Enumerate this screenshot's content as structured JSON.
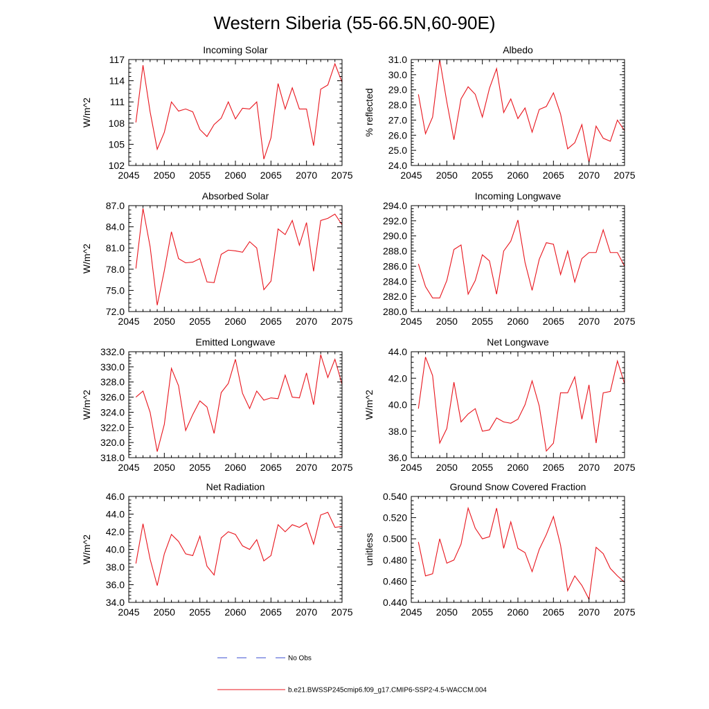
{
  "figure": {
    "title": "Western Siberia (55-66.5N,60-90E)",
    "line_color": "#e8141c",
    "obs_color": "#3a4bd1"
  },
  "legend": {
    "obs_label": "No Obs",
    "model_label": "b.e21.BWSSP245cmip6.f09_g17.CMIP6-SSP2-4.5-WACCM.004"
  },
  "chart_data": [
    {
      "type": "line",
      "title": "Incoming Solar",
      "xlabel": "",
      "ylabel": "W/m^2",
      "xlim": [
        2045,
        2075
      ],
      "ylim": [
        102,
        117
      ],
      "xticks": [
        2045,
        2050,
        2055,
        2060,
        2065,
        2070,
        2075
      ],
      "yticks": [
        102,
        105,
        108,
        111,
        114,
        117
      ],
      "ytick_labels": [
        "102",
        "105",
        "108",
        "111",
        "114",
        "117"
      ],
      "x": [
        2046,
        2047,
        2048,
        2049,
        2050,
        2051,
        2052,
        2053,
        2054,
        2055,
        2056,
        2057,
        2058,
        2059,
        2060,
        2061,
        2062,
        2063,
        2064,
        2065,
        2066,
        2067,
        2068,
        2069,
        2070,
        2071,
        2072,
        2073,
        2074,
        2075
      ],
      "values": [
        108.1,
        116.2,
        109.6,
        104.3,
        106.7,
        111.0,
        109.7,
        110.0,
        109.6,
        107.1,
        106.1,
        107.8,
        108.7,
        111.0,
        108.6,
        110.1,
        110.0,
        111.0,
        102.9,
        105.9,
        113.6,
        110.0,
        113.0,
        110.0,
        110.0,
        104.8,
        112.8,
        113.4,
        116.4,
        113.8
      ]
    },
    {
      "type": "line",
      "title": "Albedo",
      "xlabel": "",
      "ylabel": "% reflected",
      "xlim": [
        2045,
        2075
      ],
      "ylim": [
        24.0,
        31.0
      ],
      "xticks": [
        2045,
        2050,
        2055,
        2060,
        2065,
        2070,
        2075
      ],
      "yticks": [
        24.0,
        25.0,
        26.0,
        27.0,
        28.0,
        29.0,
        30.0,
        31.0
      ],
      "ytick_labels": [
        "24.0",
        "25.0",
        "26.0",
        "27.0",
        "28.0",
        "29.0",
        "30.0",
        "31.0"
      ],
      "x": [
        2046,
        2047,
        2048,
        2049,
        2050,
        2051,
        2052,
        2053,
        2054,
        2055,
        2056,
        2057,
        2058,
        2059,
        2060,
        2061,
        2062,
        2063,
        2064,
        2065,
        2066,
        2067,
        2068,
        2069,
        2070,
        2071,
        2072,
        2073,
        2074,
        2075
      ],
      "values": [
        28.7,
        26.1,
        27.2,
        31.0,
        28.2,
        25.7,
        28.4,
        29.2,
        28.7,
        27.2,
        29.1,
        30.4,
        27.5,
        28.4,
        27.1,
        27.8,
        26.2,
        27.7,
        27.9,
        28.8,
        27.4,
        25.1,
        25.5,
        26.7,
        24.2,
        26.6,
        25.8,
        25.6,
        27.0,
        26.3
      ]
    },
    {
      "type": "line",
      "title": "Absorbed Solar",
      "xlabel": "",
      "ylabel": "W/m^2",
      "xlim": [
        2045,
        2075
      ],
      "ylim": [
        72.0,
        87.0
      ],
      "xticks": [
        2045,
        2050,
        2055,
        2060,
        2065,
        2070,
        2075
      ],
      "yticks": [
        72.0,
        75.0,
        78.0,
        81.0,
        84.0,
        87.0
      ],
      "ytick_labels": [
        "72.0",
        "75.0",
        "78.0",
        "81.0",
        "84.0",
        "87.0"
      ],
      "x": [
        2046,
        2047,
        2048,
        2049,
        2050,
        2051,
        2052,
        2053,
        2054,
        2055,
        2056,
        2057,
        2058,
        2059,
        2060,
        2061,
        2062,
        2063,
        2064,
        2065,
        2066,
        2067,
        2068,
        2069,
        2070,
        2071,
        2072,
        2073,
        2074,
        2075
      ],
      "values": [
        78.1,
        86.6,
        81.2,
        72.9,
        77.8,
        83.3,
        79.5,
        78.9,
        79.0,
        79.5,
        76.2,
        76.1,
        80.1,
        80.7,
        80.6,
        80.4,
        81.9,
        81.0,
        75.1,
        76.3,
        83.7,
        82.9,
        84.9,
        81.4,
        84.6,
        77.7,
        84.9,
        85.2,
        85.8,
        84.3
      ]
    },
    {
      "type": "line",
      "title": "Incoming Longwave",
      "xlabel": "",
      "ylabel": "",
      "xlim": [
        2045,
        2075
      ],
      "ylim": [
        280.0,
        294.0
      ],
      "xticks": [
        2045,
        2050,
        2055,
        2060,
        2065,
        2070,
        2075
      ],
      "yticks": [
        280.0,
        282.0,
        284.0,
        286.0,
        288.0,
        290.0,
        292.0,
        294.0
      ],
      "ytick_labels": [
        "280.0",
        "282.0",
        "284.0",
        "286.0",
        "288.0",
        "290.0",
        "292.0",
        "294.0"
      ],
      "x": [
        2046,
        2047,
        2048,
        2049,
        2050,
        2051,
        2052,
        2053,
        2054,
        2055,
        2056,
        2057,
        2058,
        2059,
        2060,
        2061,
        2062,
        2063,
        2064,
        2065,
        2066,
        2067,
        2068,
        2069,
        2070,
        2071,
        2072,
        2073,
        2074,
        2075
      ],
      "values": [
        286.3,
        283.3,
        281.8,
        281.8,
        284.1,
        288.2,
        288.8,
        282.3,
        284.1,
        287.5,
        286.7,
        282.3,
        288.0,
        289.3,
        292.1,
        286.5,
        282.8,
        286.9,
        289.1,
        288.9,
        284.9,
        288.0,
        283.9,
        287.0,
        287.8,
        287.8,
        290.8,
        287.8,
        287.8,
        286.0
      ]
    },
    {
      "type": "line",
      "title": "Emitted Longwave",
      "xlabel": "",
      "ylabel": "W/m^2",
      "xlim": [
        2045,
        2075
      ],
      "ylim": [
        318.0,
        332.0
      ],
      "xticks": [
        2045,
        2050,
        2055,
        2060,
        2065,
        2070,
        2075
      ],
      "yticks": [
        318.0,
        320.0,
        322.0,
        324.0,
        326.0,
        328.0,
        330.0,
        332.0
      ],
      "ytick_labels": [
        "318.0",
        "320.0",
        "322.0",
        "324.0",
        "326.0",
        "328.0",
        "330.0",
        "332.0"
      ],
      "x": [
        2046,
        2047,
        2048,
        2049,
        2050,
        2051,
        2052,
        2053,
        2054,
        2055,
        2056,
        2057,
        2058,
        2059,
        2060,
        2061,
        2062,
        2063,
        2064,
        2065,
        2066,
        2067,
        2068,
        2069,
        2070,
        2071,
        2072,
        2073,
        2074,
        2075
      ],
      "values": [
        326.0,
        326.8,
        324.0,
        318.8,
        322.4,
        329.8,
        327.5,
        321.6,
        323.7,
        325.5,
        324.7,
        321.2,
        326.6,
        327.8,
        331.0,
        326.5,
        324.5,
        326.8,
        325.6,
        325.9,
        325.8,
        328.9,
        326.0,
        325.9,
        329.2,
        325.0,
        331.6,
        328.6,
        331.0,
        327.7
      ]
    },
    {
      "type": "line",
      "title": "Net Longwave",
      "xlabel": "",
      "ylabel": "W/m^2",
      "xlim": [
        2045,
        2075
      ],
      "ylim": [
        36.0,
        44.0
      ],
      "xticks": [
        2045,
        2050,
        2055,
        2060,
        2065,
        2070,
        2075
      ],
      "yticks": [
        36.0,
        38.0,
        40.0,
        42.0,
        44.0
      ],
      "ytick_labels": [
        "36.0",
        "38.0",
        "40.0",
        "42.0",
        "44.0"
      ],
      "x": [
        2046,
        2047,
        2048,
        2049,
        2050,
        2051,
        2052,
        2053,
        2054,
        2055,
        2056,
        2057,
        2058,
        2059,
        2060,
        2061,
        2062,
        2063,
        2064,
        2065,
        2066,
        2067,
        2068,
        2069,
        2070,
        2071,
        2072,
        2073,
        2074,
        2075
      ],
      "values": [
        39.7,
        43.6,
        42.2,
        37.1,
        38.2,
        41.7,
        38.7,
        39.3,
        39.7,
        38.0,
        38.1,
        39.0,
        38.7,
        38.6,
        38.9,
        40.0,
        41.8,
        39.9,
        36.5,
        37.1,
        40.9,
        40.9,
        42.1,
        38.9,
        41.5,
        37.1,
        40.9,
        41.0,
        43.3,
        41.6
      ]
    },
    {
      "type": "line",
      "title": "Net Radiation",
      "xlabel": "",
      "ylabel": "W/m^2",
      "xlim": [
        2045,
        2075
      ],
      "ylim": [
        34.0,
        46.0
      ],
      "xticks": [
        2045,
        2050,
        2055,
        2060,
        2065,
        2070,
        2075
      ],
      "yticks": [
        34.0,
        36.0,
        38.0,
        40.0,
        42.0,
        44.0,
        46.0
      ],
      "ytick_labels": [
        "34.0",
        "36.0",
        "38.0",
        "40.0",
        "42.0",
        "44.0",
        "46.0"
      ],
      "x": [
        2046,
        2047,
        2048,
        2049,
        2050,
        2051,
        2052,
        2053,
        2054,
        2055,
        2056,
        2057,
        2058,
        2059,
        2060,
        2061,
        2062,
        2063,
        2064,
        2065,
        2066,
        2067,
        2068,
        2069,
        2070,
        2071,
        2072,
        2073,
        2074,
        2075
      ],
      "values": [
        38.4,
        42.9,
        38.9,
        35.9,
        39.5,
        41.7,
        40.9,
        39.5,
        39.3,
        41.5,
        38.1,
        37.1,
        41.3,
        42.0,
        41.7,
        40.4,
        40.0,
        41.1,
        38.7,
        39.3,
        42.8,
        42.0,
        42.8,
        42.5,
        43.0,
        40.6,
        43.9,
        44.2,
        42.5,
        42.6
      ]
    },
    {
      "type": "line",
      "title": "Ground Snow Covered Fraction",
      "xlabel": "",
      "ylabel": "unitless",
      "xlim": [
        2045,
        2075
      ],
      "ylim": [
        0.44,
        0.54
      ],
      "xticks": [
        2045,
        2050,
        2055,
        2060,
        2065,
        2070,
        2075
      ],
      "yticks": [
        0.44,
        0.46,
        0.48,
        0.5,
        0.52,
        0.54
      ],
      "ytick_labels": [
        "0.440",
        "0.460",
        "0.480",
        "0.500",
        "0.520",
        "0.540"
      ],
      "x": [
        2046,
        2047,
        2048,
        2049,
        2050,
        2051,
        2052,
        2053,
        2054,
        2055,
        2056,
        2057,
        2058,
        2059,
        2060,
        2061,
        2062,
        2063,
        2064,
        2065,
        2066,
        2067,
        2068,
        2069,
        2070,
        2071,
        2072,
        2073,
        2074,
        2075
      ],
      "values": [
        0.497,
        0.465,
        0.467,
        0.5,
        0.477,
        0.48,
        0.495,
        0.529,
        0.51,
        0.5,
        0.502,
        0.529,
        0.491,
        0.516,
        0.491,
        0.487,
        0.469,
        0.49,
        0.504,
        0.521,
        0.494,
        0.451,
        0.465,
        0.456,
        0.443,
        0.492,
        0.486,
        0.472,
        0.465,
        0.459
      ]
    }
  ]
}
